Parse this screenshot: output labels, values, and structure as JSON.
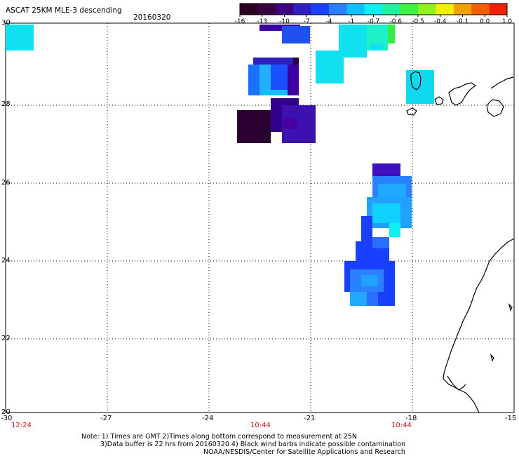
{
  "header": {
    "title": "ASCAT 25KM MLE-3 descending",
    "date": "20160320"
  },
  "colorbar": {
    "ticks": [
      "-16",
      "-13",
      "-10",
      "-7",
      "-4",
      "-1",
      "-0.7",
      "-0.6",
      "-0.5",
      "-0.4",
      "-0.1",
      "0.0",
      "1.0"
    ],
    "colors": [
      "#2a0020",
      "#3a0040",
      "#3d0080",
      "#3020c0",
      "#1a40ff",
      "#2a80ff",
      "#10c0ff",
      "#10f0f0",
      "#20f0a0",
      "#40f040",
      "#90f020",
      "#f0f000",
      "#f0a000",
      "#f06000",
      "#f02000"
    ]
  },
  "map": {
    "lat_labels": [
      "30",
      "28",
      "26",
      "24",
      "22",
      "20"
    ],
    "lon_labels": [
      "-30",
      "-27",
      "-24",
      "-21",
      "-18",
      "-15"
    ],
    "time_labels": [
      "12:24",
      "10:44",
      "10:44"
    ],
    "accent_color": "#d01010"
  },
  "footer": {
    "line1": "Note: 1) Times are GMT 2)Times along bottom correspond to measurement at 25N",
    "line2": "3)Data buffer is 22 hrs from 20160320 4) Black wind barbs indicate possible contamination",
    "line3": "NOAA/NESDIS/Center for Satellite Applications and Research"
  }
}
